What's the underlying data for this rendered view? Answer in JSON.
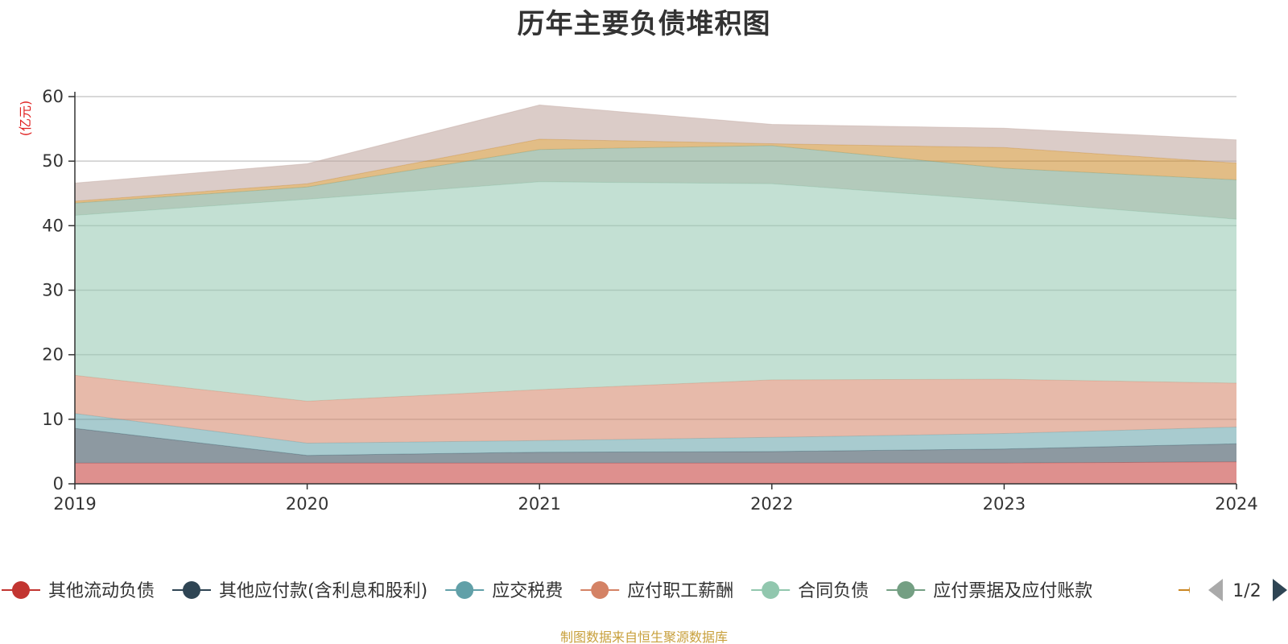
{
  "chart_data": {
    "type": "area",
    "stacked": true,
    "title": "历年主要负债堆积图",
    "unit_label": "(亿元)",
    "x": [
      "2019",
      "2020",
      "2021",
      "2022",
      "2023",
      "2024"
    ],
    "ylim": [
      0,
      60
    ],
    "yticks": [
      0,
      10,
      20,
      30,
      40,
      50,
      60
    ],
    "grid": true,
    "legend_position": "bottom",
    "series": [
      {
        "name": "其他流动负债",
        "color": "#c23531",
        "values": [
          3.2,
          3.2,
          3.2,
          3.2,
          3.2,
          3.4
        ]
      },
      {
        "name": "其他应付款(含利息和股利)",
        "color": "#2f4554",
        "values": [
          5.4,
          1.2,
          1.7,
          1.8,
          2.2,
          2.8
        ]
      },
      {
        "name": "应交税费",
        "color": "#61a0a8",
        "values": [
          2.3,
          1.9,
          1.8,
          2.2,
          2.4,
          2.6
        ]
      },
      {
        "name": "应付职工薪酬",
        "color": "#d48265",
        "values": [
          5.9,
          6.5,
          7.9,
          8.9,
          8.4,
          6.8
        ]
      },
      {
        "name": "合同负债",
        "color": "#91c7ae",
        "values": [
          24.8,
          31.3,
          32.2,
          30.4,
          27.7,
          25.4
        ]
      },
      {
        "name": "应付票据及应付账款",
        "color": "#749f83",
        "values": [
          1.9,
          1.9,
          5.0,
          5.9,
          5.0,
          6.1
        ]
      },
      {
        "name": "",
        "color": "#ca8622",
        "values": [
          0.3,
          0.5,
          1.6,
          0.3,
          3.2,
          2.6
        ]
      },
      {
        "name": "",
        "color": "#bda29a",
        "values": [
          2.8,
          3.1,
          5.3,
          3.0,
          3.0,
          3.6
        ]
      }
    ]
  },
  "legend": {
    "items": [
      {
        "label": "其他流动负债",
        "color": "#c23531"
      },
      {
        "label": "其他应付款(含利息和股利)",
        "color": "#2f4554"
      },
      {
        "label": "应交税费",
        "color": "#61a0a8"
      },
      {
        "label": "应付职工薪酬",
        "color": "#d48265"
      },
      {
        "label": "合同负债",
        "color": "#91c7ae"
      },
      {
        "label": "应付票据及应付账款",
        "color": "#749f83"
      }
    ],
    "partial_item_color": "#ca8622",
    "page_indicator": "1/2",
    "prev_icon": "triangle-left-icon",
    "next_icon": "triangle-right-icon"
  },
  "source_note": "制图数据来自恒生聚源数据库"
}
